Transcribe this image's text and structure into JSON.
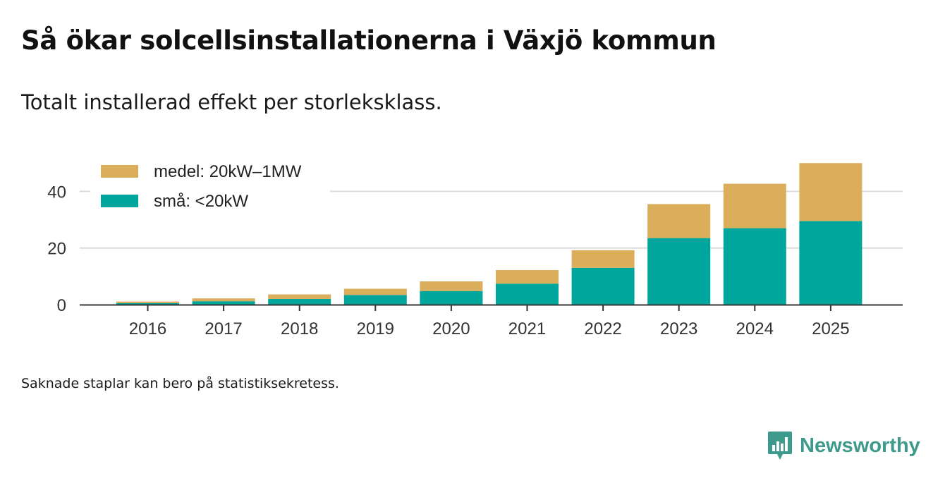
{
  "title": "Så ökar solcellsinstallationerna i Växjö kommun",
  "subtitle": "Totalt installerad effekt per storleksklass.",
  "footnote": "Saknade staplar kan bero på statistiksekretess.",
  "brand": {
    "name": "Newsworthy",
    "icon": "newsworthy-logo-icon",
    "color": "#3e9a8c"
  },
  "chart_data": {
    "type": "bar",
    "stacked": true,
    "categories": [
      "2016",
      "2017",
      "2018",
      "2019",
      "2020",
      "2021",
      "2022",
      "2023",
      "2024",
      "2025"
    ],
    "series": [
      {
        "name": "små: <20kW",
        "color": "#00a59b",
        "values": [
          0.5,
          1.2,
          2.0,
          3.4,
          4.8,
          7.4,
          13.0,
          23.5,
          27.0,
          29.5
        ]
      },
      {
        "name": "medel: 20kW–1MW",
        "color": "#daae5b",
        "values": [
          0.6,
          1.0,
          1.6,
          2.2,
          3.4,
          4.8,
          6.2,
          12.0,
          15.7,
          20.5
        ]
      }
    ],
    "legend_order": [
      1,
      0
    ],
    "yticks": [
      0,
      20,
      40
    ],
    "ylim": [
      0,
      52
    ],
    "xlabel": "",
    "ylabel": "",
    "grid": true,
    "legend_position": "top-left"
  }
}
